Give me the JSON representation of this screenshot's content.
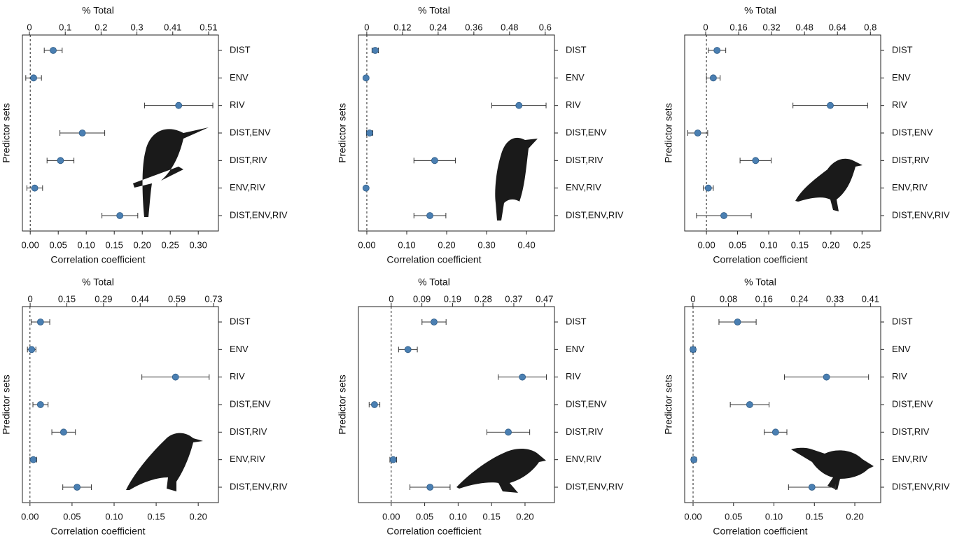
{
  "chart_data": [
    {
      "type": "dot",
      "x2label": "% Total",
      "xlabel": "Correlation coefficient",
      "ylabel": "Predictor sets",
      "categories": [
        "DIST",
        "ENV",
        "RIV",
        "DIST,ENV",
        "DIST,RIV",
        "ENV,RIV",
        "DIST,ENV,RIV"
      ],
      "values": [
        0.041,
        0.006,
        0.265,
        0.093,
        0.054,
        0.008,
        0.16
      ],
      "errors": [
        0.016,
        0.014,
        0.061,
        0.04,
        0.024,
        0.014,
        0.032
      ],
      "color": "#4a7fb2",
      "xlim": [
        -0.014,
        0.336
      ],
      "xticks": [
        {
          "value": 0,
          "label": "0.00"
        },
        0.05,
        {
          "value": 0.1,
          "label": "0.10"
        },
        0.15,
        {
          "value": 0.2,
          "label": "0.20"
        },
        0.25,
        {
          "value": 0.3,
          "label": "0.30"
        }
      ],
      "x2lim": [
        -0.02,
        0.538
      ],
      "x2ticks": [
        0,
        {
          "value": 0.102,
          "label": "0.1"
        },
        {
          "value": 0.204,
          "label": "0.2"
        },
        {
          "value": 0.306,
          "label": "0.3"
        },
        {
          "value": 0.408,
          "label": "0.41"
        },
        0.51
      ]
    },
    {
      "type": "dot",
      "x2label": "% Total",
      "xlabel": "Correlation coefficient",
      "ylabel": "Predictor sets",
      "categories": [
        "DIST",
        "ENV",
        "RIV",
        "DIST,ENV",
        "DIST,RIV",
        "ENV,RIV",
        "DIST,ENV,RIV"
      ],
      "values": [
        0.021,
        -0.002,
        0.381,
        0.007,
        0.17,
        -0.002,
        0.158
      ],
      "errors": [
        0.008,
        0.003,
        0.068,
        0.008,
        0.052,
        0.003,
        0.04
      ],
      "color": "#4a7fb2",
      "xlim": [
        -0.021,
        0.47
      ],
      "xticks": [
        {
          "value": 0,
          "label": "0.00"
        },
        {
          "value": 0.1,
          "label": "0.10"
        },
        {
          "value": 0.2,
          "label": "0.20"
        },
        {
          "value": 0.3,
          "label": "0.30"
        },
        {
          "value": 0.4,
          "label": "0.40"
        }
      ],
      "x2lim": [
        -0.028,
        0.631
      ],
      "x2ticks": [
        0,
        0.12,
        0.24,
        0.36,
        0.48,
        0.6
      ]
    },
    {
      "type": "dot",
      "x2label": "% Total",
      "xlabel": "Correlation coefficient",
      "ylabel": "Predictor sets",
      "categories": [
        "DIST",
        "ENV",
        "RIV",
        "DIST,ENV",
        "DIST,RIV",
        "ENV,RIV",
        "DIST,ENV,RIV"
      ],
      "values": [
        0.017,
        0.011,
        0.199,
        -0.014,
        0.079,
        0.003,
        0.028
      ],
      "errors": [
        0.014,
        0.011,
        0.06,
        0.016,
        0.025,
        0.008,
        0.044
      ],
      "color": "#4a7fb2",
      "xlim": [
        -0.035,
        0.28
      ],
      "xticks": [
        {
          "value": 0,
          "label": "0.00"
        },
        0.05,
        {
          "value": 0.1,
          "label": "0.10"
        },
        0.15,
        {
          "value": 0.2,
          "label": "0.20"
        },
        0.25
      ],
      "x2lim": [
        -0.102,
        0.85
      ],
      "x2ticks": [
        0,
        0.16,
        0.32,
        0.48,
        0.64,
        0.8
      ]
    },
    {
      "type": "dot",
      "x2label": "% Total",
      "xlabel": "Correlation coefficient",
      "ylabel": "Predictor sets",
      "categories": [
        "DIST",
        "ENV",
        "RIV",
        "DIST,ENV",
        "DIST,RIV",
        "ENV,RIV",
        "DIST,ENV,RIV"
      ],
      "values": [
        0.0125,
        0.002,
        0.173,
        0.0125,
        0.04,
        0.004,
        0.056
      ],
      "errors": [
        0.011,
        0.005,
        0.04,
        0.009,
        0.014,
        0.004,
        0.017
      ],
      "color": "#4a7fb2",
      "xlim": [
        -0.009,
        0.224
      ],
      "xticks": [
        {
          "value": 0,
          "label": "0.00"
        },
        0.05,
        {
          "value": 0.1,
          "label": "0.10"
        },
        0.15,
        {
          "value": 0.2,
          "label": "0.20"
        }
      ],
      "x2lim": [
        -0.031,
        0.752
      ],
      "x2ticks": [
        0,
        {
          "value": 0.1465,
          "label": "0.15"
        },
        {
          "value": 0.293,
          "label": "0.29"
        },
        {
          "value": 0.4395,
          "label": "0.44"
        },
        {
          "value": 0.586,
          "label": "0.59"
        },
        {
          "value": 0.7325,
          "label": "0.73"
        }
      ]
    },
    {
      "type": "dot",
      "x2label": "% Total",
      "xlabel": "Correlation coefficient",
      "ylabel": "Predictor sets",
      "categories": [
        "DIST",
        "ENV",
        "RIV",
        "DIST,ENV",
        "DIST,RIV",
        "ENV,RIV",
        "DIST,ENV,RIV"
      ],
      "values": [
        0.064,
        0.025,
        0.196,
        -0.025,
        0.175,
        0.003,
        0.058
      ],
      "errors": [
        0.018,
        0.014,
        0.036,
        0.008,
        0.032,
        0.005,
        0.03
      ],
      "color": "#4a7fb2",
      "xlim": [
        -0.049,
        0.244
      ],
      "xticks": [
        {
          "value": 0,
          "label": "0.00"
        },
        0.05,
        {
          "value": 0.1,
          "label": "0.10"
        },
        0.15,
        {
          "value": 0.2,
          "label": "0.20"
        }
      ],
      "x2lim": [
        -0.1,
        0.498
      ],
      "x2ticks": [
        0,
        {
          "value": 0.0935,
          "label": "0.09"
        },
        {
          "value": 0.187,
          "label": "0.19"
        },
        {
          "value": 0.2805,
          "label": "0.28"
        },
        {
          "value": 0.374,
          "label": "0.37"
        },
        {
          "value": 0.4675,
          "label": "0.47"
        }
      ]
    },
    {
      "type": "dot",
      "x2label": "% Total",
      "xlabel": "Correlation coefficient",
      "ylabel": "Predictor sets",
      "categories": [
        "DIST",
        "ENV",
        "RIV",
        "DIST,ENV",
        "DIST,RIV",
        "ENV,RIV",
        "DIST,ENV,RIV"
      ],
      "values": [
        0.055,
        0,
        0.165,
        0.07,
        0.102,
        0.001,
        0.147
      ],
      "errors": [
        0.023,
        0.003,
        0.052,
        0.024,
        0.014,
        0.003,
        0.029
      ],
      "color": "#4a7fb2",
      "xlim": [
        -0.0104,
        0.232
      ],
      "xticks": [
        {
          "value": 0,
          "label": "0.00"
        },
        0.05,
        {
          "value": 0.1,
          "label": "0.10"
        },
        0.15,
        {
          "value": 0.2,
          "label": "0.20"
        }
      ],
      "x2lim": [
        -0.019,
        0.431
      ],
      "x2ticks": [
        0,
        {
          "value": 0.0815,
          "label": "0.08"
        },
        {
          "value": 0.163,
          "label": "0.16"
        },
        {
          "value": 0.2445,
          "label": "0.24"
        },
        {
          "value": 0.326,
          "label": "0.33"
        },
        {
          "value": 0.4075,
          "label": "0.41"
        }
      ]
    }
  ]
}
